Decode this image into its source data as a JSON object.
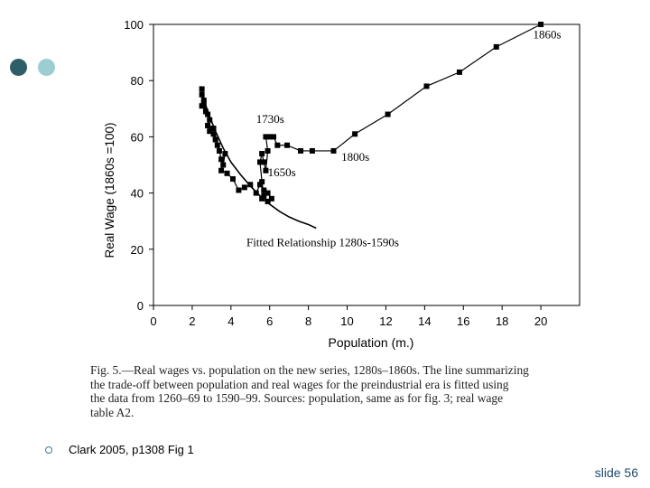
{
  "decor": {
    "dot_colors": [
      "#2e5f66",
      "#9ccdd3"
    ]
  },
  "chart_data": {
    "type": "line",
    "xlabel": "Population (m.)",
    "ylabel": "Real Wage (1860s =100)",
    "xlim": [
      0,
      22
    ],
    "ylim": [
      0,
      100
    ],
    "x_ticks": [
      0,
      2,
      4,
      6,
      8,
      10,
      12,
      14,
      16,
      18,
      20
    ],
    "y_ticks": [
      0,
      20,
      40,
      60,
      80,
      100
    ],
    "grid": false,
    "series": [
      {
        "marker": "square",
        "color": "#000000",
        "points": [
          [
            2.5,
            77
          ],
          [
            2.5,
            75
          ],
          [
            2.6,
            73
          ],
          [
            2.5,
            71
          ],
          [
            2.7,
            69
          ],
          [
            2.6,
            72
          ],
          [
            2.8,
            68
          ],
          [
            2.9,
            66
          ],
          [
            2.8,
            64
          ],
          [
            3.0,
            63
          ],
          [
            2.9,
            62
          ],
          [
            3.1,
            61
          ],
          [
            3.2,
            59
          ],
          [
            3.1,
            63
          ],
          [
            3.3,
            57
          ],
          [
            3.4,
            55
          ],
          [
            3.5,
            52
          ],
          [
            3.6,
            50
          ],
          [
            3.7,
            54
          ],
          [
            3.5,
            48
          ],
          [
            3.8,
            47
          ],
          [
            4.1,
            45
          ],
          [
            4.4,
            41
          ],
          [
            4.7,
            42
          ],
          [
            5.0,
            43
          ],
          [
            5.3,
            40
          ],
          [
            5.5,
            43
          ],
          [
            5.7,
            41
          ],
          [
            5.6,
            38
          ],
          [
            5.9,
            40
          ],
          [
            6.1,
            38
          ],
          [
            5.9,
            37
          ],
          [
            5.7,
            39
          ],
          [
            5.6,
            44
          ],
          [
            5.5,
            51
          ],
          [
            5.6,
            54
          ],
          [
            5.7,
            51
          ],
          [
            5.8,
            48
          ],
          [
            5.9,
            55
          ],
          [
            5.8,
            60
          ],
          [
            6.0,
            60
          ],
          [
            6.2,
            60
          ],
          [
            6.4,
            57
          ],
          [
            6.9,
            57
          ],
          [
            7.6,
            55
          ],
          [
            8.2,
            55
          ],
          [
            9.3,
            55
          ],
          [
            10.4,
            61
          ],
          [
            12.1,
            68
          ],
          [
            14.1,
            78
          ],
          [
            15.8,
            83
          ],
          [
            17.7,
            92
          ],
          [
            20.0,
            100
          ]
        ]
      }
    ],
    "fitted_curve": {
      "color": "#000000",
      "points": [
        [
          2.4,
          78
        ],
        [
          2.8,
          69
        ],
        [
          3.2,
          62
        ],
        [
          3.6,
          56
        ],
        [
          4.0,
          51
        ],
        [
          4.5,
          46.5
        ],
        [
          5.0,
          42.5
        ],
        [
          5.5,
          39
        ],
        [
          6.0,
          36
        ],
        [
          6.5,
          33.5
        ],
        [
          7.0,
          31.5
        ],
        [
          7.5,
          30
        ],
        [
          8.0,
          28.8
        ],
        [
          8.4,
          27.5
        ]
      ]
    },
    "annotations": [
      {
        "text": "1860s",
        "x": 19.6,
        "y": 95
      },
      {
        "text": "1730s",
        "x": 5.3,
        "y": 65
      },
      {
        "text": "1800s",
        "x": 9.7,
        "y": 51.5
      },
      {
        "text": "1650s",
        "x": 5.9,
        "y": 46
      },
      {
        "text": "Fitted Relationship 1280s-1590s",
        "x": 4.8,
        "y": 21
      }
    ]
  },
  "caption": {
    "lines": [
      "Fig. 5.—Real wages vs. population on the new series, 1280s–1860s. The line summarizing",
      "the trade-off between population and real wages for the preindustrial era is fitted using",
      "the data from 1260–69 to 1590–99. Sources: population, same as for fig. 3; real wage",
      "table A2."
    ]
  },
  "citation": "Clark 2005, p1308 Fig 1",
  "slide_number": "slide 56"
}
